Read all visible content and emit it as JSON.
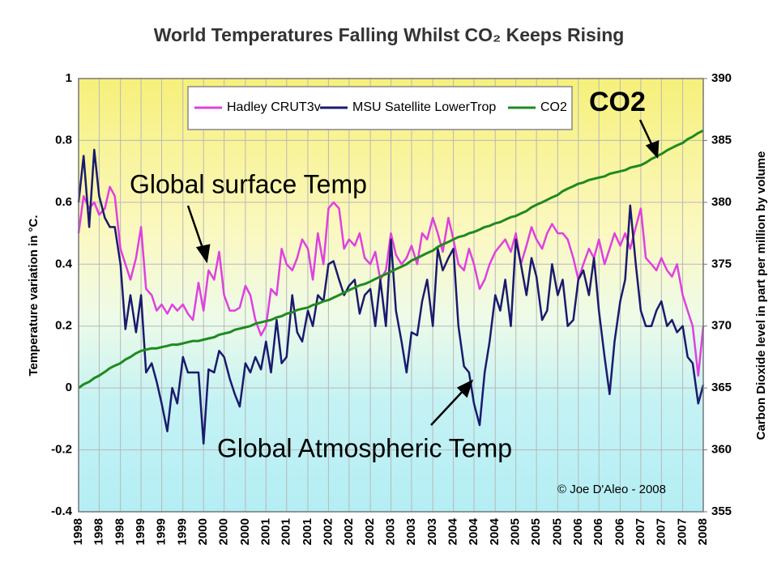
{
  "chart_data": {
    "type": "line",
    "title": "World Temperatures Falling Whilst CO₂ Keeps Rising",
    "y_label": "Temperature variation in °C.",
    "y2_label": "Carbon Dioxide level in part per million by volume",
    "annotations": [
      "Global surface Temp",
      "Global Atmospheric Temp",
      "CO2",
      "© Joe D'Aleo - 2008"
    ],
    "grid": true,
    "xlim": [
      1998,
      2008
    ],
    "ylim": [
      -0.4,
      1
    ],
    "y2lim": [
      355,
      390
    ],
    "yticks": [
      -0.4,
      -0.2,
      0,
      0.2,
      0.4,
      0.6,
      0.8,
      1
    ],
    "y2ticks": [
      355,
      360,
      365,
      370,
      375,
      380,
      385,
      390
    ],
    "xticks": [
      1998,
      {
        "value": 1998.33,
        "label": "1998"
      },
      {
        "value": 1998.67,
        "label": "1998"
      },
      1999,
      {
        "value": 1999.33,
        "label": "1999"
      },
      {
        "value": 1999.67,
        "label": "1999"
      },
      2000,
      {
        "value": 2000.33,
        "label": "2000"
      },
      {
        "value": 2000.67,
        "label": "2000"
      },
      2001,
      {
        "value": 2001.33,
        "label": "2001"
      },
      {
        "value": 2001.67,
        "label": "2001"
      },
      2002,
      {
        "value": 2002.33,
        "label": "2002"
      },
      {
        "value": 2002.67,
        "label": "2002"
      },
      2003,
      {
        "value": 2003.33,
        "label": "2003"
      },
      {
        "value": 2003.67,
        "label": "2003"
      },
      2004,
      {
        "value": 2004.33,
        "label": "2004"
      },
      {
        "value": 2004.67,
        "label": "2004"
      },
      2005,
      {
        "value": 2005.33,
        "label": "2005"
      },
      {
        "value": 2005.67,
        "label": "2005"
      },
      2006,
      {
        "value": 2006.33,
        "label": "2006"
      },
      {
        "value": 2006.67,
        "label": "2006"
      },
      2007,
      {
        "value": 2007.33,
        "label": "2007"
      },
      {
        "value": 2007.67,
        "label": "2007"
      },
      2008
    ],
    "x": [
      1998,
      1998.08,
      1998.17,
      1998.25,
      1998.33,
      1998.42,
      1998.5,
      1998.58,
      1998.67,
      1998.75,
      1998.83,
      1998.92,
      1999,
      1999.08,
      1999.17,
      1999.25,
      1999.33,
      1999.42,
      1999.5,
      1999.58,
      1999.67,
      1999.75,
      1999.83,
      1999.92,
      2000,
      2000.08,
      2000.17,
      2000.25,
      2000.33,
      2000.42,
      2000.5,
      2000.58,
      2000.67,
      2000.75,
      2000.83,
      2000.92,
      2001,
      2001.08,
      2001.17,
      2001.25,
      2001.33,
      2001.42,
      2001.5,
      2001.58,
      2001.67,
      2001.75,
      2001.83,
      2001.92,
      2002,
      2002.08,
      2002.17,
      2002.25,
      2002.33,
      2002.42,
      2002.5,
      2002.58,
      2002.67,
      2002.75,
      2002.83,
      2002.92,
      2003,
      2003.08,
      2003.17,
      2003.25,
      2003.33,
      2003.42,
      2003.5,
      2003.58,
      2003.67,
      2003.75,
      2003.83,
      2003.92,
      2004,
      2004.08,
      2004.17,
      2004.25,
      2004.33,
      2004.42,
      2004.5,
      2004.58,
      2004.67,
      2004.75,
      2004.83,
      2004.92,
      2005,
      2005.08,
      2005.17,
      2005.25,
      2005.33,
      2005.42,
      2005.5,
      2005.58,
      2005.67,
      2005.75,
      2005.83,
      2005.92,
      2006,
      2006.08,
      2006.17,
      2006.25,
      2006.33,
      2006.42,
      2006.5,
      2006.58,
      2006.67,
      2006.75,
      2006.83,
      2006.92,
      2007,
      2007.08,
      2007.17,
      2007.25,
      2007.33,
      2007.42,
      2007.5,
      2007.58,
      2007.67,
      2007.75,
      2007.83,
      2007.92,
      2008
    ],
    "series": [
      {
        "name": "Hadley CRUT3v",
        "color": "#e040e0",
        "values": [
          0.5,
          0.62,
          0.58,
          0.6,
          0.56,
          0.58,
          0.65,
          0.62,
          0.45,
          0.4,
          0.35,
          0.42,
          0.52,
          0.32,
          0.3,
          0.25,
          0.27,
          0.24,
          0.27,
          0.25,
          0.27,
          0.24,
          0.22,
          0.34,
          0.25,
          0.38,
          0.35,
          0.44,
          0.3,
          0.25,
          0.25,
          0.26,
          0.33,
          0.3,
          0.22,
          0.17,
          0.2,
          0.32,
          0.3,
          0.45,
          0.4,
          0.38,
          0.42,
          0.48,
          0.45,
          0.35,
          0.5,
          0.4,
          0.58,
          0.6,
          0.58,
          0.45,
          0.48,
          0.46,
          0.5,
          0.42,
          0.4,
          0.44,
          0.35,
          0.38,
          0.5,
          0.43,
          0.4,
          0.42,
          0.46,
          0.4,
          0.5,
          0.48,
          0.55,
          0.5,
          0.44,
          0.55,
          0.48,
          0.4,
          0.38,
          0.45,
          0.4,
          0.32,
          0.35,
          0.4,
          0.44,
          0.46,
          0.48,
          0.44,
          0.5,
          0.4,
          0.46,
          0.52,
          0.48,
          0.45,
          0.5,
          0.53,
          0.5,
          0.5,
          0.48,
          0.42,
          0.35,
          0.4,
          0.45,
          0.42,
          0.48,
          0.4,
          0.45,
          0.5,
          0.46,
          0.5,
          0.45,
          0.52,
          0.58,
          0.42,
          0.4,
          0.38,
          0.42,
          0.38,
          0.36,
          0.4,
          0.3,
          0.25,
          0.2,
          0.04,
          0.2
        ]
      },
      {
        "name": "MSU Satellite LowerTrop",
        "color": "#1a1a6e",
        "values": [
          0.6,
          0.75,
          0.52,
          0.77,
          0.62,
          0.55,
          0.52,
          0.52,
          0.4,
          0.19,
          0.3,
          0.18,
          0.3,
          0.05,
          0.08,
          0.02,
          -0.05,
          -0.14,
          0.0,
          -0.05,
          0.1,
          0.05,
          0.05,
          0.05,
          -0.18,
          0.06,
          0.05,
          0.12,
          0.1,
          0.03,
          -0.02,
          -0.06,
          0.08,
          0.05,
          0.1,
          0.06,
          0.15,
          0.05,
          0.22,
          0.08,
          0.1,
          0.3,
          0.18,
          0.15,
          0.25,
          0.2,
          0.3,
          0.28,
          0.4,
          0.41,
          0.35,
          0.3,
          0.33,
          0.35,
          0.24,
          0.3,
          0.32,
          0.2,
          0.35,
          0.2,
          0.48,
          0.25,
          0.15,
          0.05,
          0.18,
          0.17,
          0.28,
          0.35,
          0.2,
          0.45,
          0.38,
          0.42,
          0.45,
          0.2,
          0.07,
          0.05,
          -0.05,
          -0.12,
          0.05,
          0.15,
          0.3,
          0.25,
          0.35,
          0.2,
          0.48,
          0.4,
          0.3,
          0.42,
          0.36,
          0.22,
          0.25,
          0.4,
          0.3,
          0.35,
          0.2,
          0.22,
          0.35,
          0.38,
          0.3,
          0.42,
          0.25,
          0.1,
          -0.02,
          0.15,
          0.28,
          0.35,
          0.59,
          0.4,
          0.25,
          0.2,
          0.2,
          0.25,
          0.28,
          0.2,
          0.22,
          0.18,
          0.2,
          0.1,
          0.08,
          -0.05,
          0.01
        ]
      },
      {
        "name": "CO2",
        "color": "#1f8a1f",
        "axis": "y2",
        "values": [
          365.0,
          365.3,
          365.5,
          365.8,
          366.0,
          366.3,
          366.6,
          366.8,
          367.0,
          367.3,
          367.5,
          367.8,
          368.0,
          368.1,
          368.2,
          368.2,
          368.3,
          368.4,
          368.5,
          368.5,
          368.6,
          368.7,
          368.8,
          368.8,
          368.9,
          369.0,
          369.1,
          369.3,
          369.4,
          369.5,
          369.7,
          369.8,
          369.9,
          370.0,
          370.2,
          370.3,
          370.4,
          370.5,
          370.7,
          370.8,
          371.0,
          371.1,
          371.3,
          371.4,
          371.5,
          371.7,
          371.8,
          372.0,
          372.1,
          372.3,
          372.5,
          372.7,
          372.9,
          373.1,
          373.3,
          373.4,
          373.6,
          373.8,
          374.0,
          374.2,
          374.4,
          374.6,
          374.8,
          375.0,
          375.3,
          375.5,
          375.7,
          375.9,
          376.1,
          376.4,
          376.6,
          376.8,
          377.0,
          377.2,
          377.3,
          377.5,
          377.6,
          377.8,
          378.0,
          378.1,
          378.3,
          378.4,
          378.6,
          378.8,
          378.9,
          379.1,
          379.3,
          379.6,
          379.8,
          380.0,
          380.2,
          380.4,
          380.6,
          380.9,
          381.1,
          381.3,
          381.5,
          381.6,
          381.8,
          381.9,
          382.0,
          382.1,
          382.3,
          382.4,
          382.5,
          382.6,
          382.8,
          382.9,
          383.0,
          383.2,
          383.5,
          383.7,
          383.9,
          384.2,
          384.4,
          384.6,
          384.8,
          385.1,
          385.3,
          385.6,
          385.8
        ]
      }
    ]
  }
}
